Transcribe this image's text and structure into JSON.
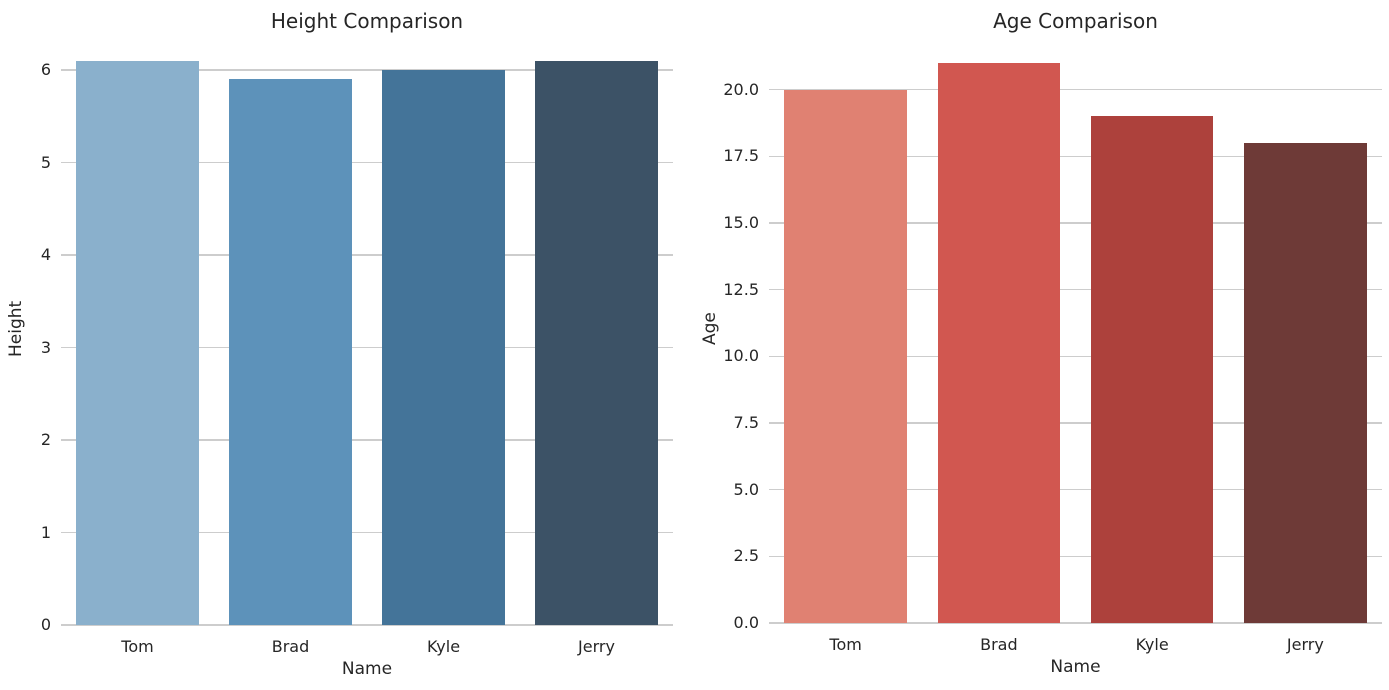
{
  "figure": {
    "background": "#ffffff",
    "text_color": "#262626",
    "grid_color": "#cdcdcd"
  },
  "chart_data": [
    {
      "type": "bar",
      "title": "Height Comparison",
      "xlabel": "Name",
      "ylabel": "Height",
      "categories": [
        "Tom",
        "Brad",
        "Kyle",
        "Jerry"
      ],
      "values": [
        6.1,
        5.9,
        6.0,
        6.1
      ],
      "bar_colors": [
        "#8AB0CC",
        "#5D92BA",
        "#447499",
        "#3C5266"
      ],
      "ylim": [
        0,
        6.4
      ],
      "yticks": [
        0,
        1,
        2,
        3,
        4,
        5,
        6
      ],
      "ytick_labels": [
        "0",
        "1",
        "2",
        "3",
        "4",
        "5",
        "6"
      ],
      "grid": true,
      "legend": "none",
      "bar_width_fraction": 0.8
    },
    {
      "type": "bar",
      "title": "Age Comparison",
      "xlabel": "Name",
      "ylabel": "Age",
      "categories": [
        "Tom",
        "Brad",
        "Kyle",
        "Jerry"
      ],
      "values": [
        20,
        21,
        19,
        18
      ],
      "bar_colors": [
        "#E08172",
        "#D15750",
        "#AD413C",
        "#6E3A37"
      ],
      "ylim": [
        0,
        22.05
      ],
      "yticks": [
        0,
        2.5,
        5,
        7.5,
        10,
        12.5,
        15,
        17.5,
        20
      ],
      "ytick_labels": [
        "0.0",
        "2.5",
        "5.0",
        "7.5",
        "10.0",
        "12.5",
        "15.0",
        "17.5",
        "20.0"
      ],
      "grid": true,
      "legend": "none",
      "bar_width_fraction": 0.8
    }
  ]
}
